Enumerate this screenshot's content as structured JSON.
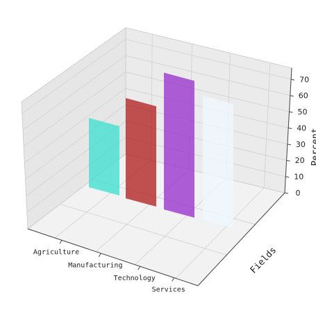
{
  "chart_data": {
    "type": "bar",
    "title": "",
    "categories": [
      "Agriculture",
      "Manufacturing",
      "Technology",
      "Services"
    ],
    "values": [
      38,
      55,
      75,
      68
    ],
    "colors": [
      "#40e0d0",
      "#b22222",
      "#9932cc",
      "#f0f8ff"
    ],
    "xlabel": "",
    "ylabel": "Fields",
    "zlabel": "Percent",
    "z_ticks": [
      "0",
      "10",
      "20",
      "30",
      "40",
      "50",
      "60",
      "70"
    ],
    "zlim": [
      0,
      77
    ],
    "grid": true
  }
}
